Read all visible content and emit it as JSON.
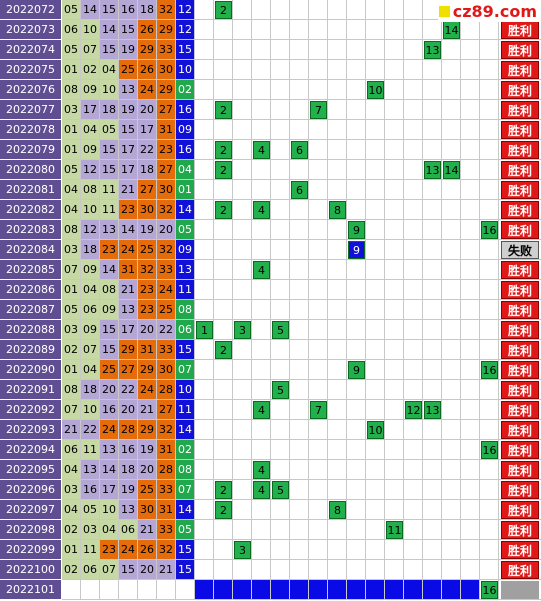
{
  "logo": "cz89.com",
  "rows": [
    {
      "issue": "2022072",
      "red": [
        "05",
        "14",
        "15",
        "16",
        "18",
        "32"
      ],
      "blue": "12",
      "picks": [
        2
      ],
      "result": null
    },
    {
      "issue": "2022073",
      "red": [
        "06",
        "10",
        "14",
        "15",
        "26",
        "29"
      ],
      "blue": "12",
      "picks": [
        14
      ],
      "result": "胜利"
    },
    {
      "issue": "2022074",
      "red": [
        "05",
        "07",
        "15",
        "19",
        "29",
        "33"
      ],
      "blue": "15",
      "picks": [
        13
      ],
      "result": "胜利"
    },
    {
      "issue": "2022075",
      "red": [
        "01",
        "02",
        "04",
        "25",
        "26",
        "30"
      ],
      "blue": "10",
      "picks": [],
      "result": "胜利"
    },
    {
      "issue": "2022076",
      "red": [
        "08",
        "09",
        "10",
        "13",
        "24",
        "29"
      ],
      "blue": "02",
      "picks": [
        10
      ],
      "result": "胜利"
    },
    {
      "issue": "2022077",
      "red": [
        "03",
        "17",
        "18",
        "19",
        "20",
        "27"
      ],
      "blue": "16",
      "picks": [
        2,
        7
      ],
      "result": "胜利"
    },
    {
      "issue": "2022078",
      "red": [
        "01",
        "04",
        "05",
        "15",
        "17",
        "31"
      ],
      "blue": "09",
      "picks": [],
      "result": "胜利"
    },
    {
      "issue": "2022079",
      "red": [
        "01",
        "09",
        "15",
        "17",
        "22",
        "23"
      ],
      "blue": "16",
      "picks": [
        2,
        4,
        6
      ],
      "result": "胜利"
    },
    {
      "issue": "2022080",
      "red": [
        "05",
        "12",
        "15",
        "17",
        "18",
        "27"
      ],
      "blue": "04",
      "picks": [
        2,
        13,
        14
      ],
      "result": "胜利"
    },
    {
      "issue": "2022081",
      "red": [
        "04",
        "08",
        "11",
        "21",
        "27",
        "30"
      ],
      "blue": "01",
      "picks": [
        6
      ],
      "result": "胜利"
    },
    {
      "issue": "2022082",
      "red": [
        "04",
        "10",
        "11",
        "23",
        "30",
        "32"
      ],
      "blue": "14",
      "picks": [
        2,
        4,
        8
      ],
      "result": "胜利"
    },
    {
      "issue": "2022083",
      "red": [
        "08",
        "12",
        "13",
        "14",
        "19",
        "20"
      ],
      "blue": "05",
      "picks": [
        9,
        16
      ],
      "result": "胜利"
    },
    {
      "issue": "2022084",
      "red": [
        "03",
        "18",
        "23",
        "24",
        "25",
        "32"
      ],
      "blue": "09",
      "picks": [
        9
      ],
      "result": "失败"
    },
    {
      "issue": "2022085",
      "red": [
        "07",
        "09",
        "14",
        "31",
        "32",
        "33"
      ],
      "blue": "13",
      "picks": [
        4
      ],
      "result": "胜利"
    },
    {
      "issue": "2022086",
      "red": [
        "01",
        "04",
        "08",
        "21",
        "23",
        "24"
      ],
      "blue": "11",
      "picks": [],
      "result": "胜利"
    },
    {
      "issue": "2022087",
      "red": [
        "05",
        "06",
        "09",
        "13",
        "23",
        "25"
      ],
      "blue": "08",
      "picks": [],
      "result": "胜利"
    },
    {
      "issue": "2022088",
      "red": [
        "03",
        "09",
        "15",
        "17",
        "20",
        "22"
      ],
      "blue": "06",
      "picks": [
        1,
        3,
        5
      ],
      "result": "胜利"
    },
    {
      "issue": "2022089",
      "red": [
        "02",
        "07",
        "15",
        "29",
        "31",
        "33"
      ],
      "blue": "15",
      "picks": [
        2
      ],
      "result": "胜利"
    },
    {
      "issue": "2022090",
      "red": [
        "01",
        "04",
        "25",
        "27",
        "29",
        "30"
      ],
      "blue": "07",
      "picks": [
        9,
        16
      ],
      "result": "胜利"
    },
    {
      "issue": "2022091",
      "red": [
        "08",
        "18",
        "20",
        "22",
        "24",
        "28"
      ],
      "blue": "10",
      "picks": [
        5
      ],
      "result": "胜利"
    },
    {
      "issue": "2022092",
      "red": [
        "07",
        "10",
        "16",
        "20",
        "21",
        "27"
      ],
      "blue": "11",
      "picks": [
        4,
        7,
        12,
        13
      ],
      "result": "胜利"
    },
    {
      "issue": "2022093",
      "red": [
        "21",
        "22",
        "24",
        "28",
        "29",
        "32"
      ],
      "blue": "14",
      "picks": [
        10
      ],
      "result": "胜利"
    },
    {
      "issue": "2022094",
      "red": [
        "06",
        "11",
        "13",
        "16",
        "19",
        "31"
      ],
      "blue": "02",
      "picks": [
        16
      ],
      "result": "胜利"
    },
    {
      "issue": "2022095",
      "red": [
        "04",
        "13",
        "14",
        "18",
        "20",
        "28"
      ],
      "blue": "08",
      "picks": [
        4
      ],
      "result": "胜利"
    },
    {
      "issue": "2022096",
      "red": [
        "03",
        "16",
        "17",
        "19",
        "25",
        "33"
      ],
      "blue": "07",
      "picks": [
        2,
        4,
        5
      ],
      "result": "胜利"
    },
    {
      "issue": "2022097",
      "red": [
        "04",
        "05",
        "10",
        "13",
        "30",
        "31"
      ],
      "blue": "14",
      "picks": [
        2,
        8
      ],
      "result": "胜利"
    },
    {
      "issue": "2022098",
      "red": [
        "02",
        "03",
        "04",
        "06",
        "21",
        "33"
      ],
      "blue": "05",
      "picks": [
        11
      ],
      "result": "胜利"
    },
    {
      "issue": "2022099",
      "red": [
        "01",
        "11",
        "23",
        "24",
        "26",
        "32"
      ],
      "blue": "15",
      "picks": [
        3
      ],
      "result": "胜利"
    },
    {
      "issue": "2022100",
      "red": [
        "02",
        "06",
        "07",
        "15",
        "20",
        "21"
      ],
      "blue": "15",
      "picks": [],
      "result": "胜利"
    },
    {
      "issue": "2022101",
      "red": [],
      "blue": null,
      "picks": [
        16
      ],
      "result": null
    }
  ]
}
